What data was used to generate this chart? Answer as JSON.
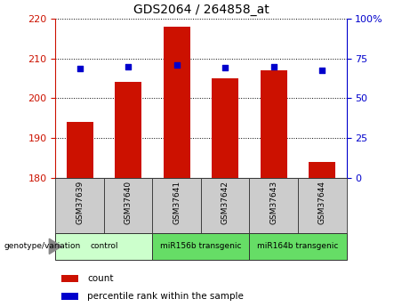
{
  "title": "GDS2064 / 264858_at",
  "samples": [
    "GSM37639",
    "GSM37640",
    "GSM37641",
    "GSM37642",
    "GSM37643",
    "GSM37644"
  ],
  "counts": [
    194.0,
    204.0,
    218.0,
    205.0,
    207.0,
    184.0
  ],
  "percentiles": [
    68.5,
    69.5,
    71.0,
    69.0,
    69.5,
    67.5
  ],
  "ylim_left": [
    180,
    220
  ],
  "ylim_right": [
    0,
    100
  ],
  "yticks_left": [
    180,
    190,
    200,
    210,
    220
  ],
  "yticks_right": [
    0,
    25,
    50,
    75,
    100
  ],
  "ytick_labels_right": [
    "0",
    "25",
    "50",
    "75",
    "100%"
  ],
  "bar_color": "#cc1100",
  "dot_color": "#0000cc",
  "bar_width": 0.55,
  "group_data": [
    {
      "start": 0,
      "end": 1,
      "label": "control",
      "color": "#ccffcc"
    },
    {
      "start": 2,
      "end": 3,
      "label": "miR156b transgenic",
      "color": "#66dd66"
    },
    {
      "start": 4,
      "end": 5,
      "label": "miR164b transgenic",
      "color": "#66dd66"
    }
  ],
  "legend_count_label": "count",
  "legend_pct_label": "percentile rank within the sample",
  "genotype_label": "genotype/variation",
  "left_axis_color": "#cc1100",
  "right_axis_color": "#0000cc",
  "sample_box_color": "#cccccc",
  "background_plot": "#ffffff"
}
